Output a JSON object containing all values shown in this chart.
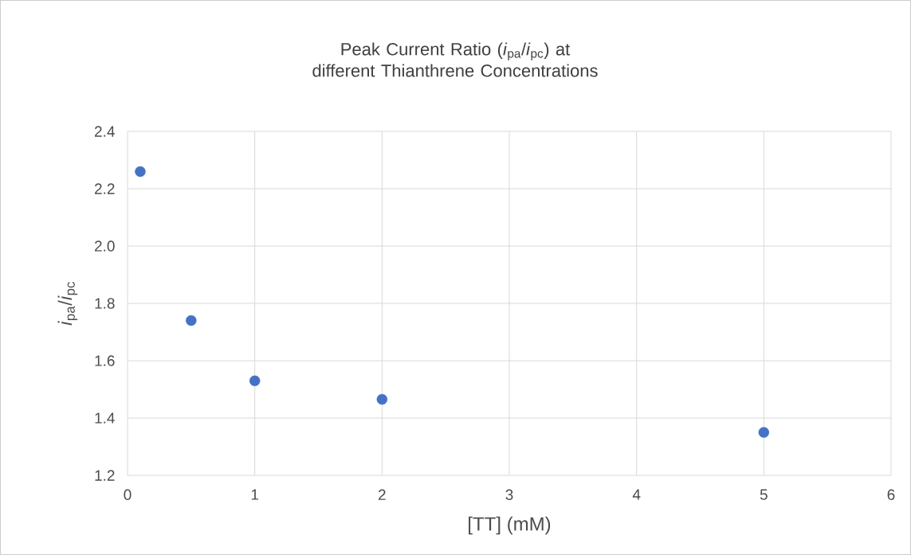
{
  "chart_data": {
    "type": "scatter",
    "title": "Peak Current Ratio (*i*$_{pa}$/*i*$_{pc}$) at different Thianthrene Concentrations",
    "xlabel": "[TT] (mM)",
    "ylabel": "*i*$_{pa}$/*i*$_{pc}$",
    "x": [
      0.1,
      0.5,
      1,
      2,
      5
    ],
    "values": [
      2.26,
      1.74,
      1.53,
      1.465,
      1.35
    ],
    "color": "#4472c4",
    "xlim": [
      0,
      6
    ],
    "xticks": [
      0,
      1,
      2,
      3,
      4,
      5,
      6
    ],
    "ylim": [
      1.2,
      2.4
    ],
    "yticks": [
      1.2,
      1.4,
      1.6,
      1.8,
      {
        "value": 2,
        "label": "2.0"
      },
      2.2,
      2.4
    ],
    "grid": true,
    "marker": "circle"
  }
}
